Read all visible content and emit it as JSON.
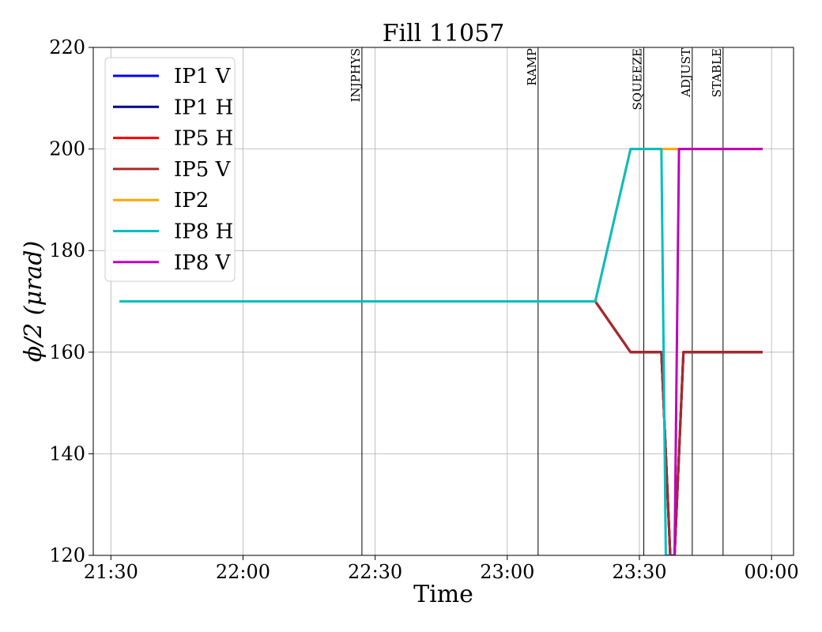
{
  "chart_data": {
    "type": "line",
    "title": "Fill 11057",
    "xlabel": "Time",
    "ylabel": "ϕ/2 (μrad)",
    "x_unit": "time of day (HH:MM, spanning midnight)",
    "xlim": [
      "21:26",
      "00:05"
    ],
    "ylim": [
      120,
      220
    ],
    "x_ticks": [
      "21:30",
      "22:00",
      "22:30",
      "23:00",
      "23:30",
      "00:00"
    ],
    "y_ticks": [
      120,
      140,
      160,
      180,
      200,
      220
    ],
    "grid": true,
    "legend": "top-left",
    "phase_markers": [
      {
        "label": "INJPHYS",
        "x": "22:27"
      },
      {
        "label": "RAMP",
        "x": "23:07"
      },
      {
        "label": "SQUEEZE",
        "x": "23:31"
      },
      {
        "label": "ADJUST",
        "x": "23:42"
      },
      {
        "label": "STABLE",
        "x": "23:49"
      }
    ],
    "series": [
      {
        "name": "IP1 V",
        "color": "#0000ff",
        "points": [
          [
            "21:32",
            170
          ],
          [
            "23:20",
            170
          ],
          [
            "23:28",
            160
          ],
          [
            "23:35",
            160
          ],
          [
            "23:37",
            120
          ],
          [
            "23:38",
            120
          ],
          [
            "23:40",
            160
          ],
          [
            "23:58",
            160
          ]
        ]
      },
      {
        "name": "IP1 H",
        "color": "#00008b",
        "points": [
          [
            "21:32",
            170
          ],
          [
            "23:20",
            170
          ],
          [
            "23:28",
            160
          ],
          [
            "23:35",
            160
          ],
          [
            "23:37",
            120
          ],
          [
            "23:38",
            120
          ],
          [
            "23:40",
            160
          ],
          [
            "23:58",
            160
          ]
        ]
      },
      {
        "name": "IP5 H",
        "color": "#ff0000",
        "points": [
          [
            "21:32",
            170
          ],
          [
            "23:20",
            170
          ],
          [
            "23:28",
            160
          ],
          [
            "23:35",
            160
          ],
          [
            "23:37",
            120
          ],
          [
            "23:38",
            120
          ],
          [
            "23:40",
            160
          ],
          [
            "23:58",
            160
          ]
        ]
      },
      {
        "name": "IP5 V",
        "color": "#a52a2a",
        "points": [
          [
            "21:32",
            170
          ],
          [
            "23:20",
            170
          ],
          [
            "23:28",
            160
          ],
          [
            "23:35",
            160
          ],
          [
            "23:37",
            120
          ],
          [
            "23:38",
            120
          ],
          [
            "23:40",
            160
          ],
          [
            "23:58",
            160
          ]
        ]
      },
      {
        "name": "IP2",
        "color": "#ffa500",
        "points": [
          [
            "21:32",
            170
          ],
          [
            "23:20",
            170
          ],
          [
            "23:28",
            200
          ],
          [
            "23:58",
            200
          ]
        ]
      },
      {
        "name": "IP8 H",
        "color": "#00bfbf",
        "points": [
          [
            "21:32",
            170
          ],
          [
            "23:20",
            170
          ],
          [
            "23:28",
            200
          ],
          [
            "23:35",
            200
          ],
          [
            "23:36",
            120
          ],
          [
            "23:37",
            120
          ]
        ]
      },
      {
        "name": "IP8 V",
        "color": "#bf00bf",
        "points": [
          [
            "23:37",
            120
          ],
          [
            "23:38",
            120
          ],
          [
            "23:39",
            200
          ],
          [
            "23:58",
            200
          ]
        ]
      }
    ]
  }
}
